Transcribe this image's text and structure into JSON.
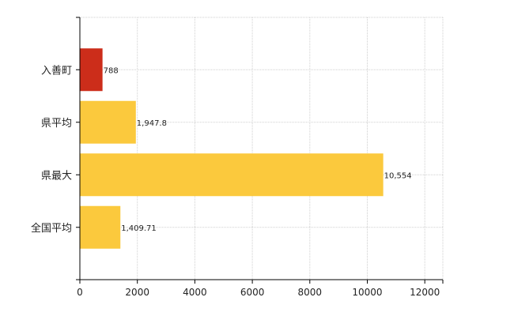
{
  "chart_data": {
    "type": "bar",
    "orientation": "horizontal",
    "categories": [
      "入善町",
      "県平均",
      "県最大",
      "全国平均"
    ],
    "values": [
      788,
      1947.8,
      10554,
      1409.71
    ],
    "value_labels": [
      "788",
      "1,947.8",
      "10,554",
      "1,409.71"
    ],
    "bar_colors": [
      "#cc2d1a",
      "#fbc93d",
      "#fbc93d",
      "#fbc93d"
    ],
    "xlim": [
      0,
      12600
    ],
    "xticks": [
      0,
      2000,
      4000,
      6000,
      8000,
      10000,
      12000
    ],
    "xtick_labels": [
      "0",
      "2000",
      "4000",
      "6000",
      "8000",
      "10000",
      "12000"
    ],
    "grid": true,
    "legend": "none",
    "title": "",
    "xlabel": "",
    "ylabel": ""
  }
}
